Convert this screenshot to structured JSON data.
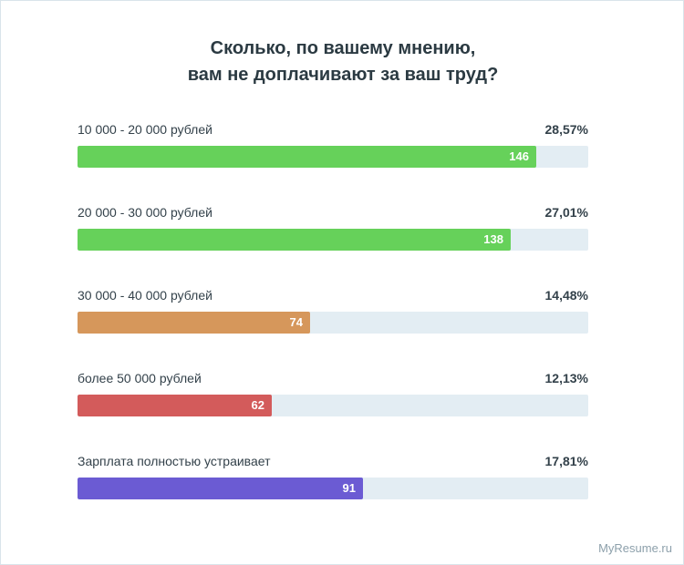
{
  "chart_data": {
    "type": "bar",
    "orientation": "horizontal",
    "title_lines": [
      "Сколько, по вашему мнению,",
      "вам не доплачивают за ваш труд?"
    ],
    "categories": [
      "10 000 - 20 000 рублей",
      "20 000 - 30 000 рублей",
      "30 000 - 40 000 рублей",
      "более 50 000 рублей",
      "Зарплата полностью устраивает"
    ],
    "values": [
      146,
      138,
      74,
      62,
      91
    ],
    "percent_labels": [
      "28,57%",
      "27,01%",
      "14,48%",
      "12,13%",
      "17,81%"
    ],
    "percent_values": [
      28.57,
      27.01,
      14.48,
      12.13,
      17.81
    ],
    "bar_colors": [
      "#66d15a",
      "#66d15a",
      "#d6975b",
      "#d35b5b",
      "#6b5bd3"
    ],
    "track_color": "#e3edf3",
    "max_value": 162.7,
    "grid": false,
    "legend": "none"
  },
  "watermark": "MyResume.ru"
}
